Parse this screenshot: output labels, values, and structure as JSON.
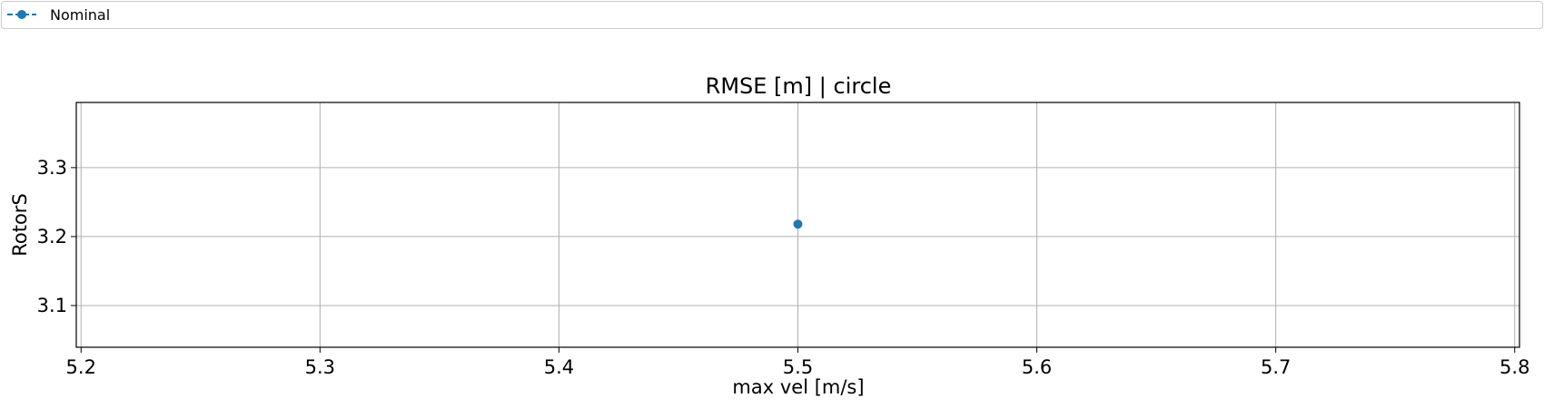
{
  "chart_data": {
    "type": "scatter",
    "title": "RMSE [m] | circle",
    "xlabel": "max vel [m/s]",
    "ylabel": "RotorS",
    "xlim": [
      5.198,
      5.802
    ],
    "ylim": [
      3.0395,
      3.3945
    ],
    "xticks": [
      5.2,
      5.3,
      5.4,
      5.5,
      5.6,
      5.7,
      5.8
    ],
    "xtick_labels": [
      "5.2",
      "5.3",
      "5.4",
      "5.5",
      "5.6",
      "5.7",
      "5.8"
    ],
    "yticks": [
      3.1,
      3.2,
      3.3
    ],
    "ytick_labels": [
      "3.1",
      "3.2",
      "3.3"
    ],
    "grid": true,
    "legend_position": "top",
    "series": [
      {
        "name": "Nominal",
        "color": "#1f77b4",
        "marker": "circle",
        "line_style": "dashed",
        "points": [
          {
            "x": 5.5,
            "y": 3.218
          }
        ]
      }
    ]
  }
}
